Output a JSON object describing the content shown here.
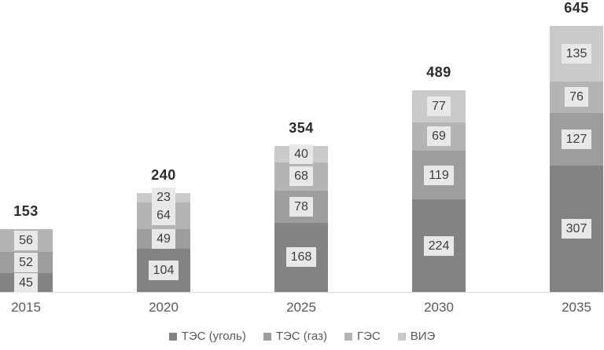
{
  "chart_data": {
    "type": "bar",
    "stacked": true,
    "title": "",
    "xlabel": "",
    "ylabel": "",
    "categories": [
      "2015",
      "2020",
      "2025",
      "2030",
      "2035"
    ],
    "series": [
      {
        "name": "ТЭС (уголь)",
        "color": "#838383",
        "values": [
          45,
          104,
          168,
          224,
          307
        ]
      },
      {
        "name": "ТЭС (газ)",
        "color": "#9d9d9d",
        "values": [
          52,
          49,
          78,
          119,
          127
        ]
      },
      {
        "name": "ГЭС",
        "color": "#b4b4b4",
        "values": [
          56,
          64,
          68,
          69,
          76
        ]
      },
      {
        "name": "ВИЭ",
        "color": "#cacaca",
        "values": [
          0,
          23,
          40,
          77,
          135
        ]
      }
    ],
    "totals": [
      153,
      240,
      354,
      489,
      645
    ],
    "ylim": [
      0,
      645
    ],
    "grid": false,
    "legend_position": "bottom",
    "colors": {
      "value_label_background": "#e8e8e8",
      "value_label_text": "#3d3d3d",
      "total_label_text": "#2b2b2b",
      "axis_line": "#d9d9d9",
      "category_label_text": "#595959",
      "legend_text": "#595959"
    }
  }
}
